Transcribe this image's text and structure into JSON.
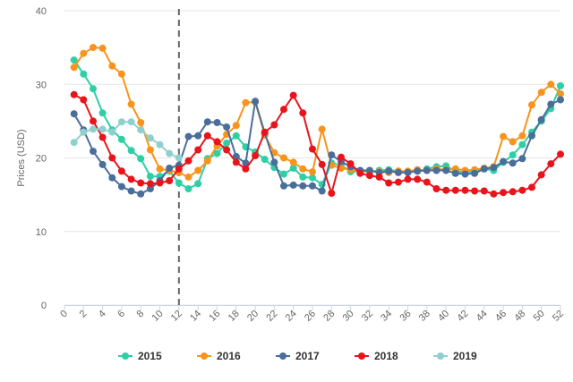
{
  "chart_data": {
    "type": "line",
    "title": "",
    "xlabel": "",
    "ylabel": "Prices (USD)",
    "xlim": [
      0,
      52
    ],
    "ylim": [
      0,
      40
    ],
    "x_ticks": [
      "0",
      "2",
      "4",
      "6",
      "8",
      "10",
      "12",
      "14",
      "16",
      "18",
      "20",
      "22",
      "24",
      "26",
      "28",
      "30",
      "32",
      "34",
      "36",
      "38",
      "40",
      "42",
      "44",
      "46",
      "48",
      "50",
      "52"
    ],
    "y_ticks": [
      "0",
      "10",
      "20",
      "30",
      "40"
    ],
    "grid": "horizontal",
    "legend_position": "bottom",
    "annotations": [
      {
        "type": "dashed-vertical-line",
        "x": 12
      }
    ],
    "series": [
      {
        "name": "2015",
        "color": "#2ecfa5",
        "points": [
          [
            1,
            33.3
          ],
          [
            2,
            31.4
          ],
          [
            3,
            29.4
          ],
          [
            4,
            26.1
          ],
          [
            5,
            23.8
          ],
          [
            6,
            22.5
          ],
          [
            7,
            21.0
          ],
          [
            8,
            19.9
          ],
          [
            9,
            17.5
          ],
          [
            10,
            17.5
          ],
          [
            11,
            18.2
          ],
          [
            12,
            16.6
          ],
          [
            13,
            15.8
          ],
          [
            14,
            16.5
          ],
          [
            15,
            19.9
          ],
          [
            16,
            20.6
          ],
          [
            17,
            22.0
          ],
          [
            18,
            23.0
          ],
          [
            19,
            21.5
          ],
          [
            20,
            20.8
          ],
          [
            21,
            19.8
          ],
          [
            22,
            18.7
          ],
          [
            23,
            17.8
          ],
          [
            24,
            18.6
          ],
          [
            25,
            17.4
          ],
          [
            26,
            17.3
          ],
          [
            27,
            16.4
          ],
          [
            28,
            19.3
          ],
          [
            29,
            19.0
          ],
          [
            30,
            18.1
          ],
          [
            31,
            18.2
          ],
          [
            32,
            18.1
          ],
          [
            33,
            18.3
          ],
          [
            34,
            18.4
          ],
          [
            35,
            18.2
          ],
          [
            36,
            18.1
          ],
          [
            37,
            18.2
          ],
          [
            38,
            18.5
          ],
          [
            39,
            18.8
          ],
          [
            40,
            18.9
          ],
          [
            41,
            18.2
          ],
          [
            42,
            18.0
          ],
          [
            43,
            18.2
          ],
          [
            44,
            18.5
          ],
          [
            45,
            18.3
          ],
          [
            46,
            19.4
          ],
          [
            47,
            20.4
          ],
          [
            48,
            21.8
          ],
          [
            49,
            23.5
          ],
          [
            50,
            25.0
          ],
          [
            51,
            26.7
          ],
          [
            52,
            29.8
          ]
        ]
      },
      {
        "name": "2016",
        "color": "#f7941d",
        "points": [
          [
            1,
            32.3
          ],
          [
            2,
            34.2
          ],
          [
            3,
            35.0
          ],
          [
            4,
            34.9
          ],
          [
            5,
            32.5
          ],
          [
            6,
            31.4
          ],
          [
            7,
            27.3
          ],
          [
            8,
            24.8
          ],
          [
            9,
            21.1
          ],
          [
            10,
            18.5
          ],
          [
            11,
            18.3
          ],
          [
            12,
            18.0
          ],
          [
            13,
            17.4
          ],
          [
            14,
            18.3
          ],
          [
            15,
            19.6
          ],
          [
            16,
            21.6
          ],
          [
            17,
            23.2
          ],
          [
            18,
            24.4
          ],
          [
            19,
            27.5
          ],
          [
            20,
            27.6
          ],
          [
            21,
            23.1
          ],
          [
            22,
            20.7
          ],
          [
            23,
            20.0
          ],
          [
            24,
            19.4
          ],
          [
            25,
            18.5
          ],
          [
            26,
            18.1
          ],
          [
            27,
            23.9
          ],
          [
            28,
            19.0
          ],
          [
            29,
            18.6
          ],
          [
            30,
            18.4
          ],
          [
            31,
            18.2
          ],
          [
            32,
            18.2
          ],
          [
            33,
            18.1
          ],
          [
            34,
            18.0
          ],
          [
            35,
            18.2
          ],
          [
            36,
            18.2
          ],
          [
            37,
            18.4
          ],
          [
            38,
            18.3
          ],
          [
            39,
            18.5
          ],
          [
            40,
            18.4
          ],
          [
            41,
            18.5
          ],
          [
            42,
            18.3
          ],
          [
            43,
            18.4
          ],
          [
            44,
            18.6
          ],
          [
            45,
            18.8
          ],
          [
            46,
            22.9
          ],
          [
            47,
            22.2
          ],
          [
            48,
            23.0
          ],
          [
            49,
            27.2
          ],
          [
            50,
            28.9
          ],
          [
            51,
            30.0
          ],
          [
            52,
            28.7
          ]
        ]
      },
      {
        "name": "2017",
        "color": "#4a6e9a",
        "points": [
          [
            1,
            26.0
          ],
          [
            2,
            23.8
          ],
          [
            3,
            20.9
          ],
          [
            4,
            19.1
          ],
          [
            5,
            17.3
          ],
          [
            6,
            16.1
          ],
          [
            7,
            15.5
          ],
          [
            8,
            15.1
          ],
          [
            9,
            15.8
          ],
          [
            10,
            16.9
          ],
          [
            11,
            18.6
          ],
          [
            12,
            19.0
          ],
          [
            13,
            22.9
          ],
          [
            14,
            23.0
          ],
          [
            15,
            24.9
          ],
          [
            16,
            24.8
          ],
          [
            17,
            24.2
          ],
          [
            18,
            20.2
          ],
          [
            19,
            19.3
          ],
          [
            20,
            27.7
          ],
          [
            21,
            23.4
          ],
          [
            22,
            19.4
          ],
          [
            23,
            16.2
          ],
          [
            24,
            16.3
          ],
          [
            25,
            16.2
          ],
          [
            26,
            16.2
          ],
          [
            27,
            15.5
          ],
          [
            28,
            20.4
          ],
          [
            29,
            19.5
          ],
          [
            30,
            18.8
          ],
          [
            31,
            18.3
          ],
          [
            32,
            18.3
          ],
          [
            33,
            18.0
          ],
          [
            34,
            18.2
          ],
          [
            35,
            18.0
          ],
          [
            36,
            18.0
          ],
          [
            37,
            18.2
          ],
          [
            38,
            18.3
          ],
          [
            39,
            18.3
          ],
          [
            40,
            18.3
          ],
          [
            41,
            17.9
          ],
          [
            42,
            17.8
          ],
          [
            43,
            17.9
          ],
          [
            44,
            18.5
          ],
          [
            45,
            18.7
          ],
          [
            46,
            19.5
          ],
          [
            47,
            19.3
          ],
          [
            48,
            19.9
          ],
          [
            49,
            23.0
          ],
          [
            50,
            25.2
          ],
          [
            51,
            27.3
          ],
          [
            52,
            27.9
          ]
        ]
      },
      {
        "name": "2018",
        "color": "#e8141b",
        "points": [
          [
            1,
            28.6
          ],
          [
            2,
            27.9
          ],
          [
            3,
            25.0
          ],
          [
            4,
            22.8
          ],
          [
            5,
            20.0
          ],
          [
            6,
            18.2
          ],
          [
            7,
            17.1
          ],
          [
            8,
            16.6
          ],
          [
            9,
            16.5
          ],
          [
            10,
            16.6
          ],
          [
            11,
            16.9
          ],
          [
            12,
            18.5
          ],
          [
            13,
            19.6
          ],
          [
            14,
            21.1
          ],
          [
            15,
            23.0
          ],
          [
            16,
            22.2
          ],
          [
            17,
            21.1
          ],
          [
            18,
            19.4
          ],
          [
            19,
            18.5
          ],
          [
            20,
            20.3
          ],
          [
            21,
            23.5
          ],
          [
            22,
            24.5
          ],
          [
            23,
            26.6
          ],
          [
            24,
            28.5
          ],
          [
            25,
            26.1
          ],
          [
            26,
            21.2
          ],
          [
            27,
            19.1
          ],
          [
            28,
            15.2
          ],
          [
            29,
            20.1
          ],
          [
            30,
            19.2
          ],
          [
            31,
            17.9
          ],
          [
            32,
            17.6
          ],
          [
            33,
            17.4
          ],
          [
            34,
            16.6
          ],
          [
            35,
            16.7
          ],
          [
            36,
            17.1
          ],
          [
            37,
            17.1
          ],
          [
            38,
            16.7
          ],
          [
            39,
            15.8
          ],
          [
            40,
            15.6
          ],
          [
            41,
            15.6
          ],
          [
            42,
            15.6
          ],
          [
            43,
            15.5
          ],
          [
            44,
            15.5
          ],
          [
            45,
            15.1
          ],
          [
            46,
            15.3
          ],
          [
            47,
            15.4
          ],
          [
            48,
            15.6
          ],
          [
            49,
            16.0
          ],
          [
            50,
            17.7
          ],
          [
            51,
            19.2
          ],
          [
            52,
            20.5
          ]
        ]
      },
      {
        "name": "2019",
        "color": "#8fd0cf",
        "points": [
          [
            1,
            22.1
          ],
          [
            2,
            23.5
          ],
          [
            3,
            23.9
          ],
          [
            4,
            23.9
          ],
          [
            5,
            23.5
          ],
          [
            6,
            24.9
          ],
          [
            7,
            24.9
          ],
          [
            8,
            23.8
          ],
          [
            9,
            22.7
          ],
          [
            10,
            21.8
          ],
          [
            11,
            20.6
          ],
          [
            12,
            20.0
          ]
        ]
      }
    ]
  }
}
